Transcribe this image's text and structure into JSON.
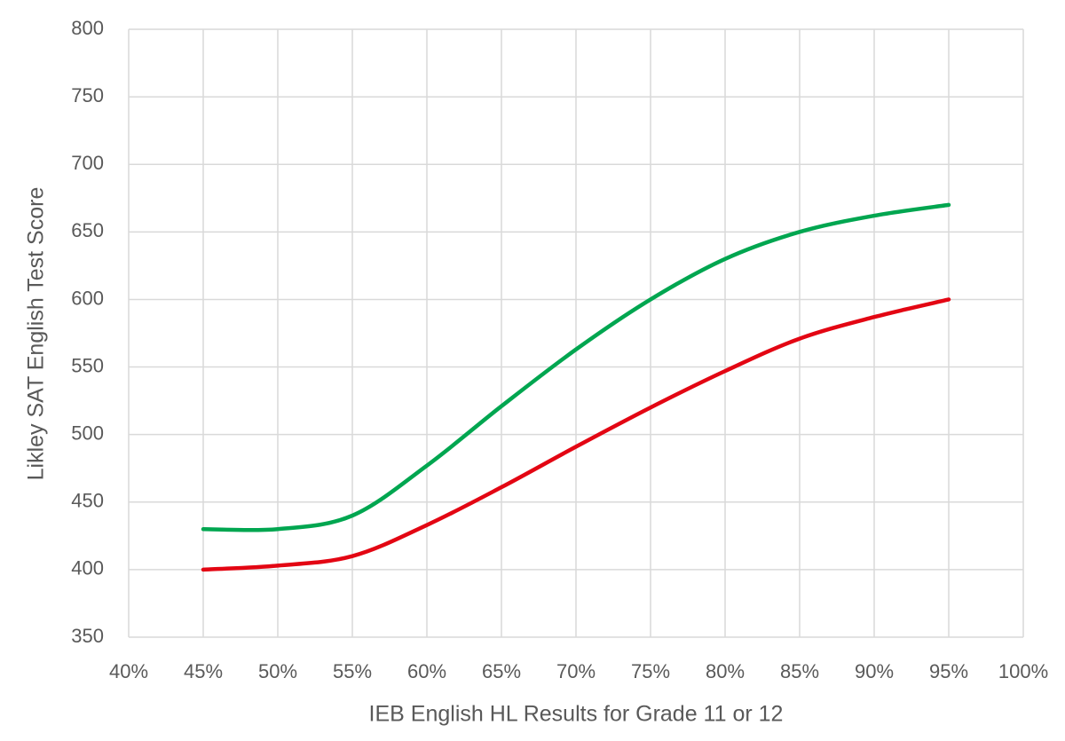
{
  "chart_data": {
    "type": "line",
    "x_label": "IEB English HL Results for Grade 11 or 12",
    "y_label": "Likley SAT English Test Score",
    "x": [
      45,
      50,
      55,
      60,
      65,
      70,
      75,
      80,
      85,
      90,
      95
    ],
    "series": [
      {
        "color": "#00a650",
        "values": [
          430,
          430,
          440,
          477,
          521,
          563,
          600,
          630,
          650,
          662,
          670
        ]
      },
      {
        "color": "#e30613",
        "values": [
          400,
          403,
          410,
          433,
          461,
          491,
          520,
          547,
          571,
          587,
          600
        ]
      }
    ],
    "xlim": [
      40,
      100
    ],
    "xticks": [
      {
        "value": 40,
        "label": "40%"
      },
      {
        "value": 45,
        "label": "45%"
      },
      {
        "value": 50,
        "label": "50%"
      },
      {
        "value": 55,
        "label": "55%"
      },
      {
        "value": 60,
        "label": "60%"
      },
      {
        "value": 65,
        "label": "65%"
      },
      {
        "value": 70,
        "label": "70%"
      },
      {
        "value": 75,
        "label": "75%"
      },
      {
        "value": 80,
        "label": "80%"
      },
      {
        "value": 85,
        "label": "85%"
      },
      {
        "value": 90,
        "label": "90%"
      },
      {
        "value": 95,
        "label": "95%"
      },
      {
        "value": 100,
        "label": "100%"
      }
    ],
    "ylim": [
      350,
      800
    ],
    "yticks": [
      350,
      400,
      450,
      500,
      550,
      600,
      650,
      700,
      750,
      800
    ],
    "grid": true,
    "smooth": true
  }
}
